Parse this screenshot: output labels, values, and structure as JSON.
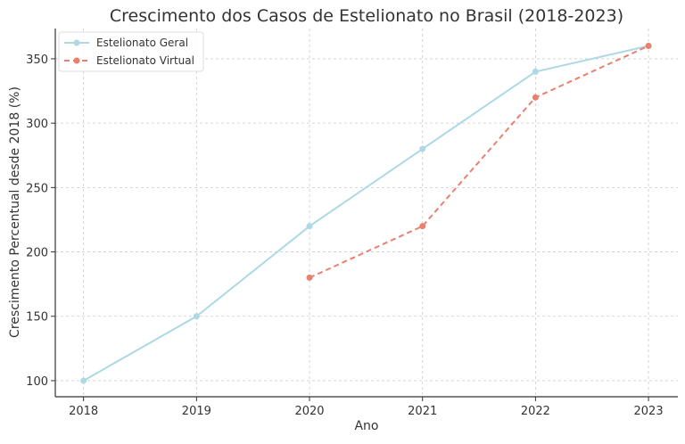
{
  "chart_data": {
    "type": "line",
    "title": "Crescimento dos Casos de Estelionato no Brasil (2018-2023)",
    "xlabel": "Ano",
    "ylabel": "Crescimento Percentual desde 2018 (%)",
    "x": [
      2018,
      2019,
      2020,
      2021,
      2022,
      2023
    ],
    "xticks": [
      "2018",
      "2019",
      "2020",
      "2021",
      "2022",
      "2023"
    ],
    "yticks": [
      100,
      150,
      200,
      250,
      300,
      350
    ],
    "xlim": [
      2017.75,
      2023.26
    ],
    "ylim": [
      87.5,
      373.5
    ],
    "grid": true,
    "legend_position": "top-left",
    "series": [
      {
        "name": "Estelionato Geral",
        "color": "#add8e6",
        "dash": "solid",
        "x": [
          2018,
          2019,
          2020,
          2021,
          2022,
          2023
        ],
        "values": [
          100,
          150,
          220,
          280,
          340,
          360
        ]
      },
      {
        "name": "Estelionato Virtual",
        "color": "#ea8070",
        "dash": "dashed",
        "x": [
          2020,
          2021,
          2022,
          2023
        ],
        "values": [
          180,
          220,
          320,
          360
        ]
      }
    ]
  }
}
